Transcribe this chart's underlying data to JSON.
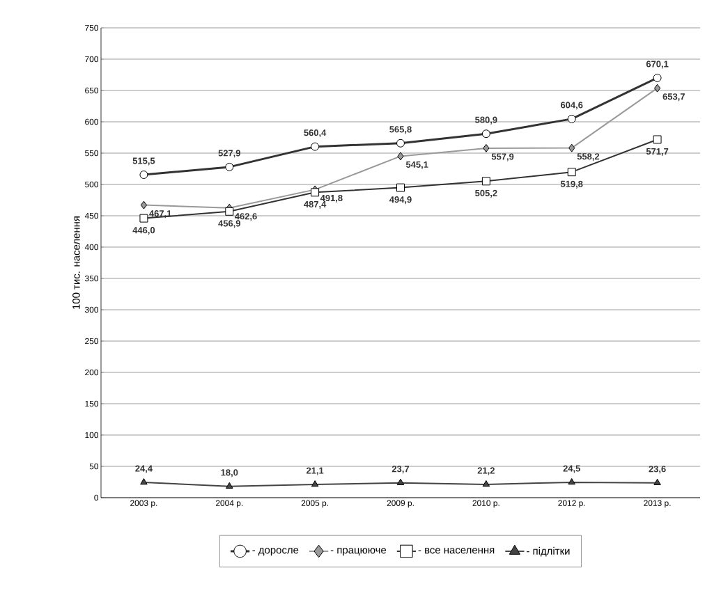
{
  "chart_data": {
    "type": "line",
    "ylabel": "100 тис. населення",
    "categories": [
      "2003 р.",
      "2004 р.",
      "2005 р.",
      "2009 р.",
      "2010 р.",
      "2012 р.",
      "2013 р."
    ],
    "series": [
      {
        "name": "- доросле",
        "color": "#333333",
        "marker": "circle",
        "values": [
          515.5,
          527.9,
          560.4,
          565.8,
          580.9,
          604.6,
          670.1
        ],
        "value_labels": [
          "515,5",
          "527,9",
          "560,4",
          "565,8",
          "580,9",
          "604,6",
          "670,1"
        ]
      },
      {
        "name": "- працююче",
        "color": "#999999",
        "marker": "diamond",
        "values": [
          467.1,
          462.6,
          491.8,
          545.1,
          557.9,
          558.2,
          653.7
        ],
        "value_labels": [
          "467,1",
          "462,6",
          "491,8",
          "545,1",
          "557,9",
          "558,2",
          "653,7"
        ]
      },
      {
        "name": "- все населення",
        "color": "#333333",
        "marker": "square",
        "values": [
          446.0,
          456.9,
          487.4,
          494.9,
          505.2,
          519.8,
          571.7
        ],
        "value_labels": [
          "446,0",
          "456,9",
          "487,4",
          "494,9",
          "505,2",
          "519,8",
          "571,7"
        ]
      },
      {
        "name": "- підлітки",
        "color": "#444444",
        "marker": "triangle",
        "values": [
          24.4,
          18.0,
          21.1,
          23.7,
          21.2,
          24.5,
          23.6
        ],
        "value_labels": [
          "24,4",
          "18,0",
          "21,1",
          "23,7",
          "21,2",
          "24,5",
          "23,6"
        ]
      }
    ],
    "ylim": [
      0,
      750
    ],
    "yticks": [
      0,
      50,
      100,
      150,
      200,
      250,
      300,
      350,
      400,
      450,
      500,
      550,
      600,
      650,
      700,
      750
    ],
    "grid": "y",
    "legend": "bottom"
  }
}
